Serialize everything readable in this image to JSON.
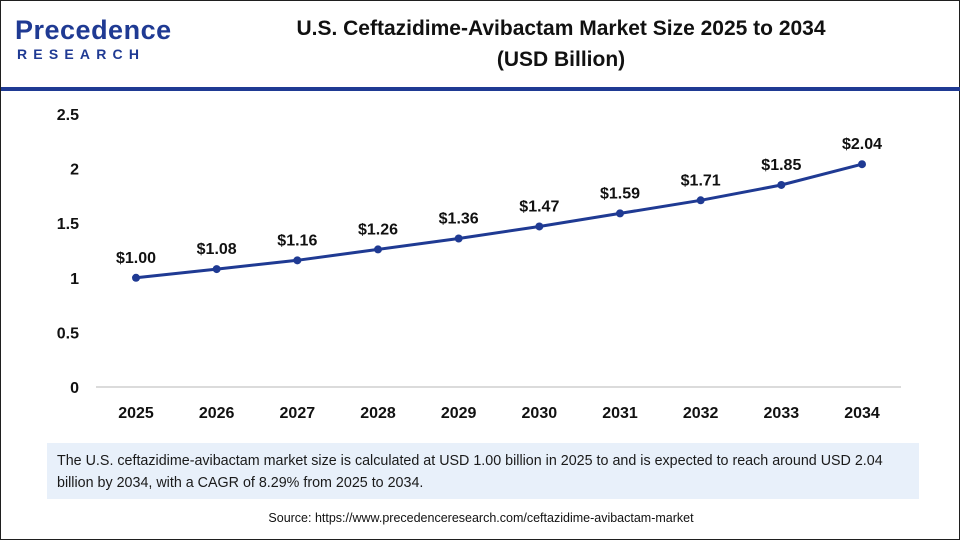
{
  "logo": {
    "top_text": "Precedence",
    "bottom_text": "RESEARCH",
    "color": "#1f3a93"
  },
  "title": {
    "line1": "U.S. Ceftazidime-Avibactam Market Size 2025 to 2034",
    "line2": "(USD Billion)"
  },
  "chart_data": {
    "type": "line",
    "x": [
      "2025",
      "2026",
      "2027",
      "2028",
      "2029",
      "2030",
      "2031",
      "2032",
      "2033",
      "2034"
    ],
    "series": [
      {
        "values": [
          1.0,
          1.08,
          1.16,
          1.26,
          1.36,
          1.47,
          1.59,
          1.71,
          1.85,
          2.04
        ],
        "labels": [
          "$1.00",
          "$1.08",
          "$1.16",
          "$1.26",
          "$1.36",
          "$1.47",
          "$1.59",
          "$1.71",
          "$1.85",
          "$2.04"
        ],
        "color": "#1f3a93"
      }
    ],
    "y_ticks": [
      "0",
      "0.5",
      "1",
      "1.5",
      "2",
      "2.5"
    ],
    "ylim": [
      0,
      2.5
    ],
    "grid": false,
    "legend": "none"
  },
  "note": "The U.S. ceftazidime-avibactam market size is calculated at USD 1.00 billion in 2025 to and is expected to reach around USD 2.04 billion by 2034, with a CAGR of 8.29% from 2025 to 2034.",
  "source": "Source: https://www.precedenceresearch.com/ceftazidime-avibactam-market"
}
